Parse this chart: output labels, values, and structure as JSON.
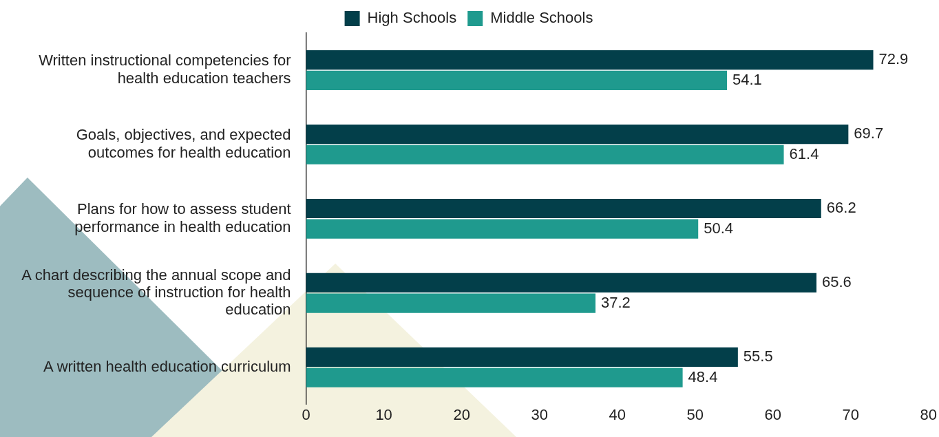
{
  "chart_data": {
    "type": "bar",
    "orientation": "horizontal",
    "categories": [
      "Written instructional competencies for health education teachers",
      "Goals, objectives, and expected outcomes for health education",
      "Plans for how to assess student performance in health education",
      "A chart describing the annual scope and sequence of instruction for health education",
      "A written health education curriculum"
    ],
    "series": [
      {
        "name": "High Schools",
        "color": "#033f4a",
        "values": [
          72.9,
          69.7,
          66.2,
          65.6,
          55.5
        ]
      },
      {
        "name": "Middle Schools",
        "color": "#1f9a8e",
        "values": [
          54.1,
          61.4,
          50.4,
          37.2,
          48.4
        ]
      }
    ],
    "xlim": [
      0,
      80
    ],
    "xticks": [
      0,
      10,
      20,
      30,
      40,
      50,
      60,
      70,
      80
    ],
    "grid": false,
    "legend": "top",
    "data_labels": true
  }
}
